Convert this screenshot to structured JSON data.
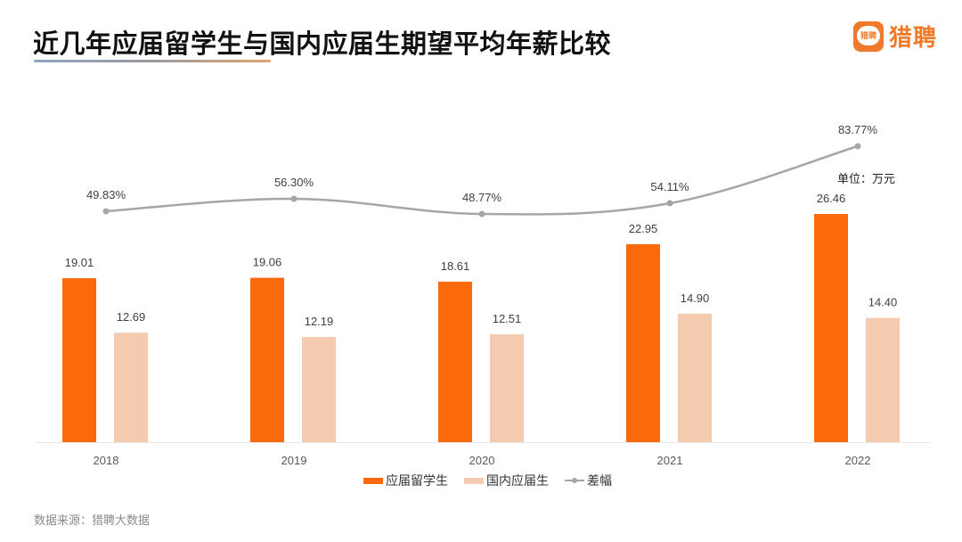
{
  "header": {
    "title": "近几年应届留学生与国内应届生期望平均年薪比较",
    "logo_text": "猎聘",
    "logo_icon_text": "猎聘",
    "unit_label": "单位：万元"
  },
  "legend": {
    "items": [
      {
        "label": "应届留学生",
        "color": "#fa6a0a",
        "type": "bar"
      },
      {
        "label": "国内应届生",
        "color": "#f5cbb0",
        "type": "bar"
      },
      {
        "label": "差幅",
        "color": "#a6a6a6",
        "type": "line"
      }
    ]
  },
  "footer": {
    "source": "数据来源：猎聘大数据"
  },
  "chart_data": {
    "type": "bar",
    "title": "近几年应届留学生与国内应届生期望平均年薪比较",
    "categories": [
      "2018",
      "2019",
      "2020",
      "2021",
      "2022"
    ],
    "series": [
      {
        "name": "应届留学生",
        "type": "bar",
        "color": "#fa6a0a",
        "values": [
          19.01,
          19.06,
          18.61,
          22.95,
          26.46
        ],
        "labels": [
          "19.01",
          "19.06",
          "18.61",
          "22.95",
          "26.46"
        ]
      },
      {
        "name": "国内应届生",
        "type": "bar",
        "color": "#f5cbb0",
        "values": [
          12.69,
          12.19,
          12.51,
          14.9,
          14.4
        ],
        "labels": [
          "12.69",
          "12.19",
          "12.51",
          "14.90",
          "14.40"
        ]
      },
      {
        "name": "差幅",
        "type": "line",
        "color": "#a6a6a6",
        "values": [
          49.83,
          56.3,
          48.77,
          54.11,
          83.77
        ],
        "labels": [
          "49.83%",
          "56.30%",
          "48.77%",
          "54.11%",
          "83.77%"
        ]
      }
    ],
    "xlabel": "",
    "ylabel": "单位：万元",
    "grid": false,
    "legend_position": "bottom"
  }
}
